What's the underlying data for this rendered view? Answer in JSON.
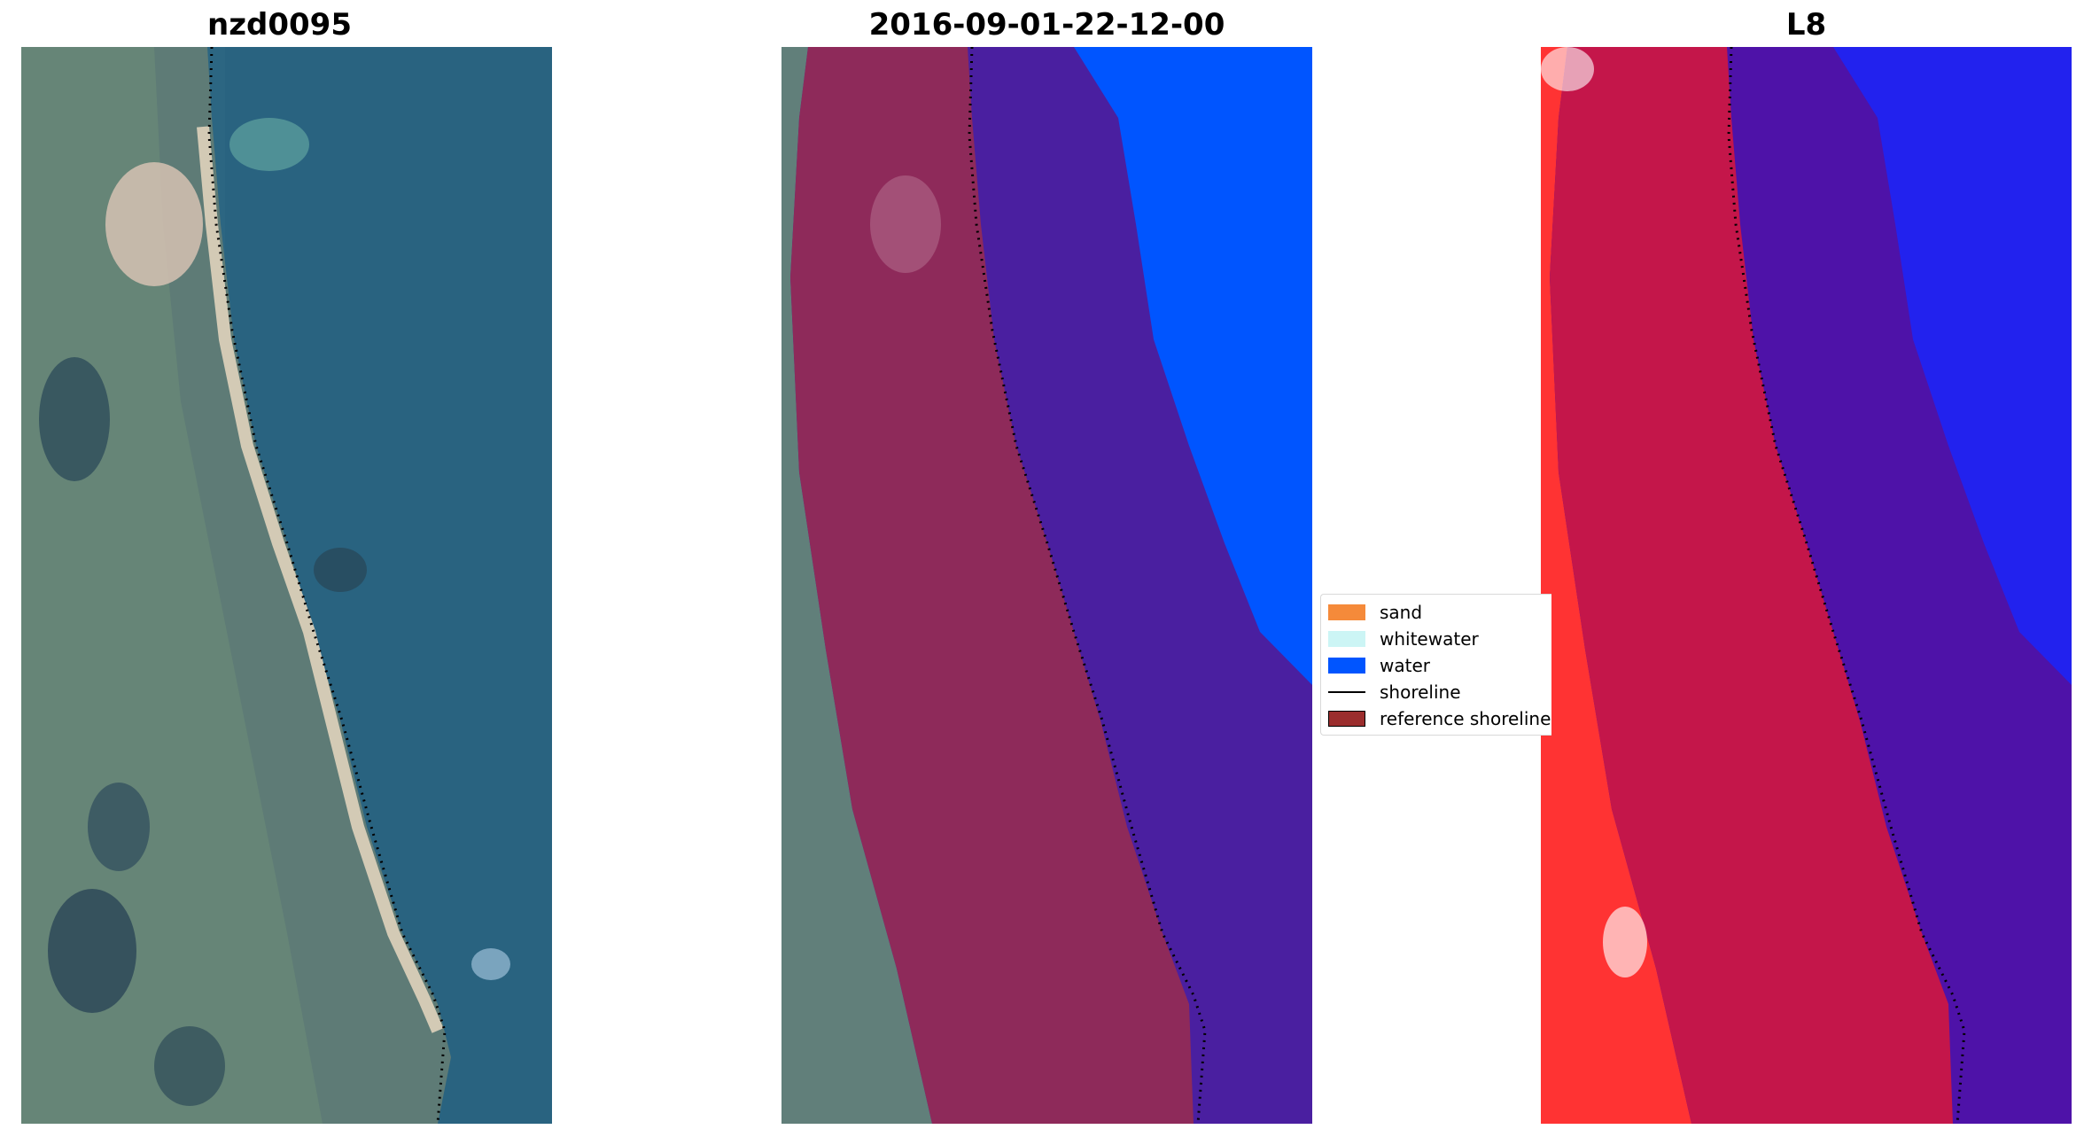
{
  "panels": [
    {
      "title": "nzd0095"
    },
    {
      "title": "2016-09-01-22-12-00"
    },
    {
      "title": "L8"
    }
  ],
  "legend": {
    "items": [
      {
        "label": "sand",
        "color": "#f58a3a"
      },
      {
        "label": "whitewater",
        "color": "#ccf5f5"
      },
      {
        "label": "water",
        "color": "#0055ff"
      },
      {
        "label": "shoreline",
        "color": "#000000"
      },
      {
        "label": "reference shoreline",
        "color": "#9b2d2d"
      }
    ]
  },
  "colors": {
    "sea_rgb": "#2a6a86",
    "land_rgb": "#5f7c78",
    "beach": "#d8c7b0",
    "water_class": "#0055ff",
    "buffer_land": "#8e2a5a",
    "buffer_sea": "#4a1fa0",
    "mndwi_land": "#ff2e2e",
    "mndwi_sea": "#2222ee"
  }
}
